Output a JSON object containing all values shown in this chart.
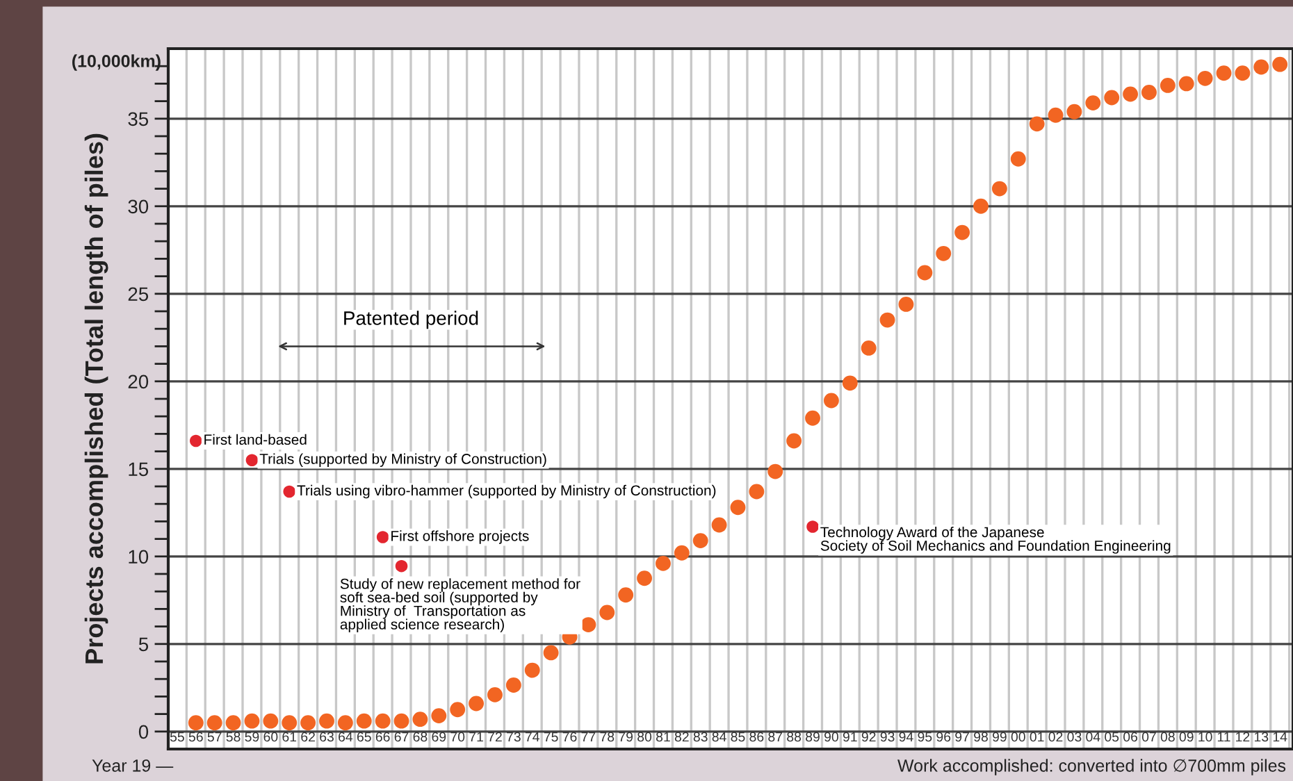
{
  "chart_data": {
    "type": "scatter",
    "ylabel": "Projects accomplished (Total length of piles)",
    "categories": [
      "55",
      "56",
      "57",
      "58",
      "59",
      "60",
      "61",
      "62",
      "63",
      "64",
      "65",
      "66",
      "67",
      "68",
      "69",
      "70",
      "71",
      "72",
      "73",
      "74",
      "75",
      "76",
      "77",
      "78",
      "79",
      "80",
      "81",
      "82",
      "83",
      "84",
      "85",
      "86",
      "87",
      "88",
      "89",
      "90",
      "91",
      "92",
      "93",
      "94",
      "95",
      "96",
      "97",
      "98",
      "99",
      "00",
      "01",
      "02",
      "03",
      "04",
      "05",
      "06",
      "07",
      "08",
      "09",
      "10",
      "11",
      "12",
      "13",
      "14"
    ],
    "series": [
      {
        "color": "#f26522",
        "values": [
          null,
          0.5,
          0.5,
          0.5,
          0.6,
          0.6,
          0.5,
          0.5,
          0.6,
          0.5,
          0.6,
          0.6,
          0.6,
          0.7,
          0.9,
          1.25,
          1.6,
          2.1,
          2.65,
          3.5,
          4.5,
          5.4,
          6.1,
          6.8,
          7.8,
          8.75,
          9.6,
          10.2,
          10.9,
          11.8,
          12.8,
          13.7,
          14.85,
          16.6,
          17.9,
          18.9,
          19.9,
          21.9,
          23.5,
          24.4,
          26.2,
          27.3,
          28.5,
          30.0,
          31.0,
          32.7,
          34.7,
          35.2,
          35.4,
          35.9,
          36.2,
          36.4,
          36.5,
          36.9,
          37.0,
          37.3,
          37.6,
          37.6,
          37.95,
          38.1
        ]
      }
    ],
    "marker": "circle",
    "ylim": [
      -1,
      39
    ],
    "yticks": [
      0,
      {
        "value": 1,
        "label": null
      },
      {
        "value": 2,
        "label": null
      },
      {
        "value": 3,
        "label": null
      },
      {
        "value": 4,
        "label": null
      },
      5,
      {
        "value": 6,
        "label": null
      },
      {
        "value": 7,
        "label": null
      },
      {
        "value": 8,
        "label": null
      },
      {
        "value": 9,
        "label": null
      },
      10,
      {
        "value": 11,
        "label": null
      },
      {
        "value": 12,
        "label": null
      },
      {
        "value": 13,
        "label": null
      },
      {
        "value": 14,
        "label": null
      },
      15,
      {
        "value": 16,
        "label": null
      },
      {
        "value": 17,
        "label": null
      },
      {
        "value": 18,
        "label": null
      },
      {
        "value": 19,
        "label": null
      },
      20,
      {
        "value": 21,
        "label": null
      },
      {
        "value": 22,
        "label": null
      },
      {
        "value": 23,
        "label": null
      },
      {
        "value": 24,
        "label": null
      },
      25,
      {
        "value": 26,
        "label": null
      },
      {
        "value": 27,
        "label": null
      },
      {
        "value": 28,
        "label": null
      },
      {
        "value": 29,
        "label": null
      },
      30,
      {
        "value": 31,
        "label": null
      },
      {
        "value": 32,
        "label": null
      },
      {
        "value": 33,
        "label": null
      },
      {
        "value": 34,
        "label": null
      },
      35,
      {
        "value": 36,
        "label": null
      },
      {
        "value": 37,
        "label": null
      },
      {
        "value": 38,
        "label": null
      }
    ],
    "grid": true,
    "annotations": [
      "Patented period",
      {
        "text": "First land-based",
        "x": "56",
        "y": 16.6
      },
      {
        "text": "Trials (supported by Ministry of Construction)",
        "x": "59",
        "y": 15.5
      },
      {
        "text": "Trials using vibro-hammer (supported by Ministry of Construction)",
        "x": "61",
        "y": 13.7
      },
      {
        "text": "First offshore projects",
        "x": "66",
        "y": 11.1
      },
      {
        "text": "Study of new replacement method for\nsoft sea-bed soil (supported by\nMinistry of  Transportation as\napplied science research)",
        "x": "67",
        "y": 9.45
      },
      {
        "text": "Technology Award of the Japanese\nSociety of Soil Mechanics and Foundation Engineering",
        "x": "89",
        "y": 11.7
      },
      "(10,000km)",
      "Year 19 —",
      "Work accomplished: converted into ∅700mm piles"
    ]
  }
}
